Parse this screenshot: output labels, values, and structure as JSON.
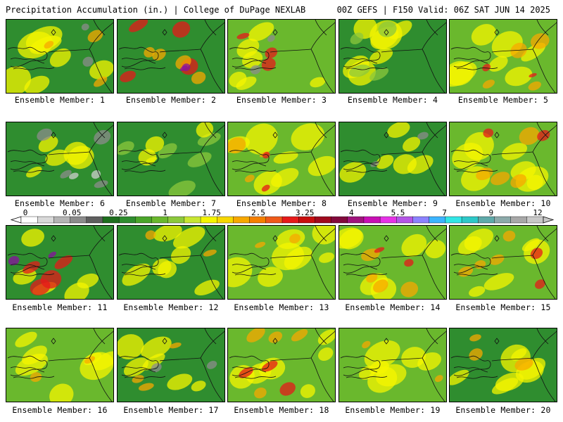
{
  "header": {
    "title_left": "Precipitation Accumulation (in.) | College of DuPage NEXLAB",
    "title_right": "00Z GEFS | F150 Valid: 06Z SAT JUN 14 2025"
  },
  "panels": [
    {
      "label": "Ensemble Member: 1",
      "base": "#2f8d2f",
      "blobs": [
        [
          "#f5f500",
          0.62
        ],
        [
          "#f7a800",
          0.25
        ],
        [
          "#8c8c8c",
          0.1
        ]
      ]
    },
    {
      "label": "Ensemble Member: 2",
      "base": "#2f8d2f",
      "blobs": [
        [
          "#e61a1a",
          0.35
        ],
        [
          "#f7a800",
          0.3
        ],
        [
          "#8a0fa0",
          0.08
        ]
      ]
    },
    {
      "label": "Ensemble Member: 3",
      "base": "#6ab82d",
      "blobs": [
        [
          "#f5f500",
          0.5
        ],
        [
          "#e61a1a",
          0.22
        ],
        [
          "#8c8c8c",
          0.1
        ]
      ]
    },
    {
      "label": "Ensemble Member: 4",
      "base": "#2f8d2f",
      "blobs": [
        [
          "#f5f500",
          0.55
        ],
        [
          "#8cc83c",
          0.3
        ]
      ]
    },
    {
      "label": "Ensemble Member: 5",
      "base": "#6ab82d",
      "blobs": [
        [
          "#f5f500",
          0.6
        ],
        [
          "#f7a800",
          0.3
        ],
        [
          "#e61a1a",
          0.1
        ]
      ]
    },
    {
      "label": "Ensemble Member: 6",
      "base": "#2f8d2f",
      "blobs": [
        [
          "#f5f500",
          0.45
        ],
        [
          "#8c8c8c",
          0.3
        ],
        [
          "#cfcfcf",
          0.12
        ]
      ]
    },
    {
      "label": "Ensemble Member: 7",
      "base": "#2f8d2f",
      "blobs": [
        [
          "#8cc83c",
          0.45
        ],
        [
          "#f5f500",
          0.3
        ]
      ]
    },
    {
      "label": "Ensemble Member: 8",
      "base": "#6ab82d",
      "blobs": [
        [
          "#f5f500",
          0.55
        ],
        [
          "#f7a800",
          0.25
        ],
        [
          "#e61a1a",
          0.08
        ]
      ]
    },
    {
      "label": "Ensemble Member: 9",
      "base": "#2f8d2f",
      "blobs": [
        [
          "#f5f500",
          0.5
        ],
        [
          "#8c8c8c",
          0.12
        ]
      ]
    },
    {
      "label": "Ensemble Member: 10",
      "base": "#6ab82d",
      "blobs": [
        [
          "#f5f500",
          0.55
        ],
        [
          "#f7a800",
          0.3
        ],
        [
          "#e61a1a",
          0.15
        ]
      ]
    },
    {
      "label": "Ensemble Member: 11",
      "base": "#2f8d2f",
      "blobs": [
        [
          "#f5f500",
          0.45
        ],
        [
          "#e61a1a",
          0.3
        ],
        [
          "#8a0fa0",
          0.12
        ]
      ]
    },
    {
      "label": "Ensemble Member: 12",
      "base": "#2f8d2f",
      "blobs": [
        [
          "#f5f500",
          0.55
        ],
        [
          "#f7a800",
          0.2
        ]
      ]
    },
    {
      "label": "Ensemble Member: 13",
      "base": "#6ab82d",
      "blobs": [
        [
          "#f5f500",
          0.55
        ],
        [
          "#f7a800",
          0.15
        ]
      ]
    },
    {
      "label": "Ensemble Member: 14",
      "base": "#6ab82d",
      "blobs": [
        [
          "#f5f500",
          0.5
        ],
        [
          "#f7a800",
          0.3
        ],
        [
          "#e61a1a",
          0.12
        ]
      ]
    },
    {
      "label": "Ensemble Member: 15",
      "base": "#6ab82d",
      "blobs": [
        [
          "#f5f500",
          0.5
        ],
        [
          "#f7a800",
          0.3
        ],
        [
          "#e61a1a",
          0.2
        ]
      ]
    },
    {
      "label": "Ensemble Member: 16",
      "base": "#6ab82d",
      "blobs": [
        [
          "#f5f500",
          0.55
        ],
        [
          "#f7a800",
          0.2
        ]
      ]
    },
    {
      "label": "Ensemble Member: 17",
      "base": "#2f8d2f",
      "blobs": [
        [
          "#f5f500",
          0.5
        ],
        [
          "#f7a800",
          0.25
        ],
        [
          "#8c8c8c",
          0.1
        ]
      ]
    },
    {
      "label": "Ensemble Member: 18",
      "base": "#6ab82d",
      "blobs": [
        [
          "#f5f500",
          0.5
        ],
        [
          "#f7a800",
          0.3
        ],
        [
          "#e61a1a",
          0.22
        ]
      ]
    },
    {
      "label": "Ensemble Member: 19",
      "base": "#6ab82d",
      "blobs": [
        [
          "#f5f500",
          0.6
        ],
        [
          "#f7a800",
          0.15
        ]
      ]
    },
    {
      "label": "Ensemble Member: 20",
      "base": "#2f8d2f",
      "blobs": [
        [
          "#f5f500",
          0.55
        ],
        [
          "#f7a800",
          0.25
        ]
      ]
    }
  ],
  "colorbar": {
    "labels": [
      "0",
      "0.05",
      "0.25",
      "1",
      "1.75",
      "2.5",
      "3.25",
      "4",
      "5.5",
      "7",
      "9",
      "12"
    ],
    "colors": [
      "#ffffff",
      "#d9d9d9",
      "#b4b4b4",
      "#8c8c8c",
      "#5f5f5f",
      "#1e6e1e",
      "#2f8d2f",
      "#4aa52a",
      "#6ab82d",
      "#8cc83c",
      "#c8e632",
      "#f5f500",
      "#f7d700",
      "#f7a800",
      "#f57f00",
      "#ef5a1a",
      "#e61a1a",
      "#c80f0f",
      "#a00a1e",
      "#820a3c",
      "#a0147d",
      "#c80fb4",
      "#e632e6",
      "#b455e6",
      "#8c82ff",
      "#3cb4ff",
      "#32e6e6",
      "#2dc8c8",
      "#5faaaa",
      "#8caaaa",
      "#a8a8a8",
      "#c8c8c8"
    ]
  }
}
